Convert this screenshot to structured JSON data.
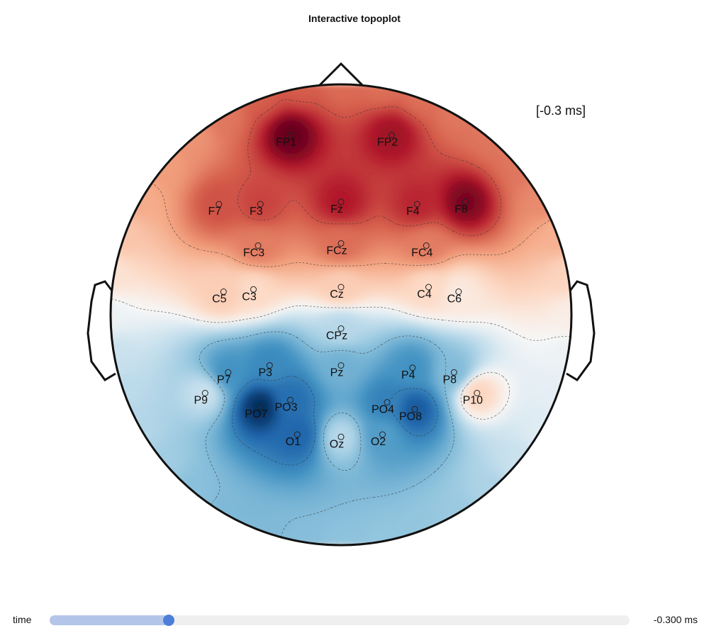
{
  "title": "Interactive topoplot",
  "time_annotation": "[-0.3 ms]",
  "slider": {
    "label": "time",
    "value_text": "-0.300 ms",
    "position_fraction": 0.205
  },
  "colors": {
    "negative": "#0b3d7a",
    "positive": "#7f0a17",
    "neutral": "#ffffff",
    "outline": "#111111"
  },
  "chart_data": {
    "type": "heatmap",
    "colormap": "RdBu_r",
    "time_ms": -0.3,
    "electrodes": [
      {
        "name": "FP1",
        "x": -0.22,
        "y": 0.78,
        "value": 1.0
      },
      {
        "name": "FP2",
        "x": 0.22,
        "y": 0.78,
        "value": 0.85
      },
      {
        "name": "F7",
        "x": -0.53,
        "y": 0.48,
        "value": 0.6
      },
      {
        "name": "F3",
        "x": -0.35,
        "y": 0.48,
        "value": 0.65
      },
      {
        "name": "Fz",
        "x": 0.0,
        "y": 0.49,
        "value": 0.8
      },
      {
        "name": "F4",
        "x": 0.33,
        "y": 0.48,
        "value": 0.75
      },
      {
        "name": "F8",
        "x": 0.54,
        "y": 0.49,
        "value": 0.95
      },
      {
        "name": "FC3",
        "x": -0.36,
        "y": 0.3,
        "value": 0.45
      },
      {
        "name": "FCz",
        "x": 0.0,
        "y": 0.31,
        "value": 0.5
      },
      {
        "name": "FC4",
        "x": 0.37,
        "y": 0.3,
        "value": 0.45
      },
      {
        "name": "C5",
        "x": -0.51,
        "y": 0.1,
        "value": 0.15
      },
      {
        "name": "C3",
        "x": -0.38,
        "y": 0.11,
        "value": 0.1
      },
      {
        "name": "Cz",
        "x": 0.0,
        "y": 0.12,
        "value": 0.15
      },
      {
        "name": "C4",
        "x": 0.38,
        "y": 0.12,
        "value": 0.1
      },
      {
        "name": "C6",
        "x": 0.51,
        "y": 0.1,
        "value": 0.05
      },
      {
        "name": "CPz",
        "x": 0.0,
        "y": -0.06,
        "value": -0.15
      },
      {
        "name": "P7",
        "x": -0.49,
        "y": -0.25,
        "value": -0.5
      },
      {
        "name": "P3",
        "x": -0.31,
        "y": -0.22,
        "value": -0.55
      },
      {
        "name": "Pz",
        "x": 0.0,
        "y": -0.22,
        "value": -0.35
      },
      {
        "name": "P4",
        "x": 0.31,
        "y": -0.23,
        "value": -0.5
      },
      {
        "name": "P8",
        "x": 0.49,
        "y": -0.25,
        "value": -0.3
      },
      {
        "name": "P9",
        "x": -0.59,
        "y": -0.34,
        "value": -0.1
      },
      {
        "name": "P10",
        "x": 0.59,
        "y": -0.34,
        "value": 0.12
      },
      {
        "name": "PO7",
        "x": -0.35,
        "y": -0.4,
        "value": -1.0
      },
      {
        "name": "PO3",
        "x": -0.22,
        "y": -0.37,
        "value": -0.7
      },
      {
        "name": "PO4",
        "x": 0.2,
        "y": -0.38,
        "value": -0.6
      },
      {
        "name": "PO8",
        "x": 0.32,
        "y": -0.41,
        "value": -0.8
      },
      {
        "name": "O1",
        "x": -0.19,
        "y": -0.52,
        "value": -0.75
      },
      {
        "name": "Oz",
        "x": 0.0,
        "y": -0.53,
        "value": -0.15
      },
      {
        "name": "O2",
        "x": 0.18,
        "y": -0.52,
        "value": -0.45
      }
    ]
  }
}
